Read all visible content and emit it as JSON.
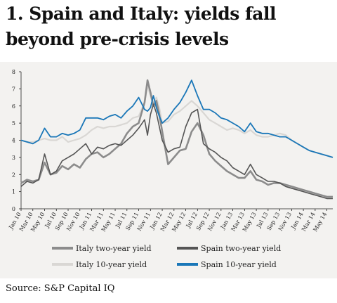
{
  "title": "1. Spain and Italy: yields fall beyond pre-crisis levels",
  "source": "Source: S&P Capital IQ",
  "chart_data": {
    "type": "line",
    "title": "1. Spain and Italy: yields fall beyond pre-crisis levels",
    "xlabel": "",
    "ylabel": "",
    "ylim": [
      0,
      8
    ],
    "yticks": [
      0,
      1,
      2,
      3,
      4,
      5,
      6,
      7,
      8
    ],
    "xlim": [
      0,
      53
    ],
    "grid": false,
    "legend_placement": "bottom",
    "x_tick_labels": [
      "Jan 10",
      "Mar 10",
      "May 10",
      "Jul 10",
      "Sep 10",
      "Nov 10",
      "Jan 11",
      "Mar 11",
      "May 11",
      "Jul 11",
      "Sep 11",
      "Nov 11",
      "Jan 12",
      "Mar 12",
      "May 12",
      "Jul 12",
      "Sep 12",
      "Nov 12",
      "Jan 13",
      "Mar 13",
      "May 13",
      "Jul 13",
      "Sep 13",
      "Nov 13",
      "Jan 14",
      "Mar 14",
      "May 14"
    ],
    "x_tick_positions": [
      0,
      2,
      4,
      6,
      8,
      10,
      12,
      14,
      16,
      18,
      20,
      22,
      24,
      26,
      28,
      30,
      32,
      34,
      36,
      38,
      40,
      42,
      44,
      46,
      48,
      50,
      52
    ],
    "series": [
      {
        "name": "Italy two-year yield",
        "color": "#8c8c8c",
        "width": 2.6,
        "x": [
          0,
          1,
          2,
          3,
          4,
          5,
          6,
          7,
          8,
          9,
          10,
          11,
          12,
          13,
          14,
          15,
          16,
          17,
          18,
          19,
          20,
          21,
          21.5,
          22,
          22.5,
          23,
          23.5,
          24,
          25,
          26,
          27,
          28,
          29,
          30,
          31,
          32,
          33,
          34,
          35,
          36,
          37,
          38,
          39,
          40,
          41,
          42,
          43,
          44,
          45,
          46,
          47,
          48,
          49,
          50,
          51,
          52,
          53
        ],
        "y": [
          1.5,
          1.7,
          1.6,
          1.7,
          2.7,
          2.0,
          2.1,
          2.5,
          2.3,
          2.6,
          2.4,
          2.9,
          3.2,
          3.3,
          3.0,
          3.2,
          3.5,
          3.8,
          4.4,
          4.8,
          5.0,
          6.2,
          7.5,
          6.8,
          6.0,
          6.3,
          5.5,
          4.5,
          2.6,
          3.0,
          3.4,
          3.5,
          4.5,
          5.0,
          4.3,
          3.2,
          2.8,
          2.5,
          2.2,
          2.0,
          1.8,
          1.8,
          2.2,
          1.7,
          1.6,
          1.4,
          1.5,
          1.5,
          1.4,
          1.3,
          1.2,
          1.1,
          1.0,
          0.9,
          0.8,
          0.7,
          0.7
        ]
      },
      {
        "name": "Spain two-year yield",
        "color": "#555555",
        "width": 1.6,
        "x": [
          0,
          1,
          2,
          3,
          4,
          5,
          6,
          7,
          8,
          9,
          10,
          11,
          12,
          13,
          14,
          15,
          16,
          17,
          18,
          19,
          20,
          21,
          21.5,
          22,
          22.5,
          23,
          23.5,
          24,
          25,
          26,
          27,
          28,
          29,
          30,
          31,
          32,
          33,
          34,
          35,
          36,
          37,
          38,
          39,
          40,
          41,
          42,
          43,
          44,
          45,
          46,
          47,
          48,
          49,
          50,
          51,
          52,
          53
        ],
        "y": [
          1.3,
          1.6,
          1.5,
          1.7,
          3.2,
          2.0,
          2.2,
          2.8,
          3.0,
          3.2,
          3.5,
          3.8,
          3.2,
          3.6,
          3.5,
          3.7,
          3.8,
          3.7,
          4.0,
          4.3,
          4.7,
          5.2,
          4.3,
          5.5,
          6.1,
          5.6,
          4.8,
          4.0,
          3.3,
          3.5,
          3.6,
          4.8,
          5.6,
          5.8,
          3.8,
          3.5,
          3.3,
          3.0,
          2.8,
          2.4,
          2.2,
          2.0,
          2.6,
          2.0,
          1.8,
          1.6,
          1.6,
          1.5,
          1.3,
          1.2,
          1.1,
          1.0,
          0.9,
          0.8,
          0.7,
          0.6,
          0.6
        ]
      },
      {
        "name": "Italy 10-year yield",
        "color": "#d9d7d4",
        "width": 2.2,
        "x": [
          0,
          1,
          2,
          3,
          4,
          5,
          6,
          7,
          8,
          9,
          10,
          11,
          12,
          13,
          14,
          15,
          16,
          17,
          18,
          19,
          20,
          21,
          21.5,
          22,
          22.5,
          23,
          23.5,
          24,
          25,
          26,
          27,
          28,
          29,
          30,
          31,
          32,
          33,
          34,
          35,
          36,
          37,
          38,
          39,
          40,
          41,
          42,
          43,
          44,
          45,
          46,
          47,
          48,
          49,
          50,
          51,
          52,
          53
        ],
        "y": [
          4.0,
          3.9,
          3.9,
          4.0,
          4.1,
          4.0,
          4.0,
          4.2,
          3.9,
          4.0,
          4.1,
          4.3,
          4.6,
          4.8,
          4.7,
          4.8,
          4.8,
          4.9,
          5.0,
          5.3,
          5.4,
          6.2,
          7.2,
          6.6,
          6.0,
          6.5,
          5.9,
          5.0,
          5.1,
          5.5,
          5.7,
          6.0,
          6.3,
          6.0,
          5.6,
          5.2,
          5.0,
          4.8,
          4.6,
          4.7,
          4.6,
          4.4,
          4.6,
          4.3,
          4.2,
          4.2,
          4.3,
          4.4,
          4.3,
          4.0,
          3.8,
          3.6,
          3.4,
          3.3,
          3.2,
          3.1,
          3.0
        ]
      },
      {
        "name": "Spain 10-year yield",
        "color": "#1a77b8",
        "width": 1.8,
        "x": [
          0,
          1,
          2,
          3,
          4,
          5,
          6,
          7,
          8,
          9,
          10,
          11,
          12,
          13,
          14,
          15,
          16,
          17,
          18,
          19,
          20,
          21,
          21.5,
          22,
          22.5,
          23,
          23.5,
          24,
          25,
          26,
          27,
          28,
          29,
          30,
          31,
          32,
          33,
          34,
          35,
          36,
          37,
          38,
          39,
          40,
          41,
          42,
          43,
          44,
          45,
          46,
          47,
          48,
          49,
          50,
          51,
          52,
          53
        ],
        "y": [
          4.0,
          3.9,
          3.8,
          4.0,
          4.7,
          4.2,
          4.2,
          4.4,
          4.3,
          4.4,
          4.6,
          5.3,
          5.3,
          5.3,
          5.2,
          5.4,
          5.5,
          5.3,
          5.7,
          6.0,
          6.5,
          5.8,
          5.7,
          5.9,
          6.6,
          5.9,
          5.4,
          5.0,
          5.3,
          5.8,
          6.2,
          6.8,
          7.5,
          6.6,
          5.8,
          5.8,
          5.6,
          5.3,
          5.2,
          5.0,
          4.8,
          4.5,
          5.0,
          4.5,
          4.4,
          4.4,
          4.3,
          4.2,
          4.2,
          4.0,
          3.8,
          3.6,
          3.4,
          3.3,
          3.2,
          3.1,
          3.0
        ]
      }
    ]
  },
  "legend": [
    {
      "label": "Italy two-year yield",
      "color": "#8c8c8c"
    },
    {
      "label": "Spain two-year yield",
      "color": "#555555"
    },
    {
      "label": "Italy 10-year yield",
      "color": "#d9d7d4"
    },
    {
      "label": "Spain 10-year yield",
      "color": "#1a77b8"
    }
  ]
}
